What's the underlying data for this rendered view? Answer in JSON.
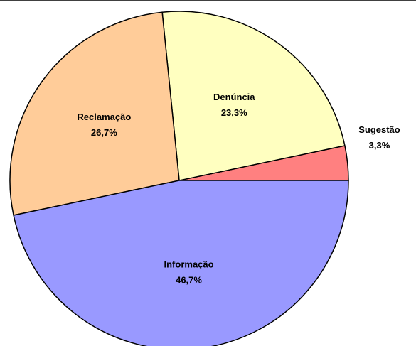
{
  "chart_data": {
    "type": "pie",
    "categories": [
      "Sugestão",
      "Denúncia",
      "Reclamação",
      "Informação"
    ],
    "values": [
      3.3,
      23.3,
      26.7,
      46.7
    ],
    "value_labels": [
      "3,3%",
      "23,3%",
      "26,7%",
      "46,7%"
    ],
    "colors": [
      "#ff8080",
      "#ffffc0",
      "#ffcc99",
      "#9999ff"
    ]
  }
}
